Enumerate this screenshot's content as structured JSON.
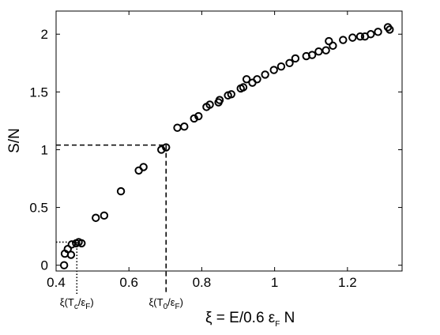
{
  "chart_data": {
    "type": "scatter",
    "title": "",
    "ylabel": "S/N",
    "xlabel": {
      "main": "ξ = E/0.6 ε",
      "sub": "F",
      "tail": " N"
    },
    "xlim": [
      0.4,
      1.35
    ],
    "ylim": [
      -0.05,
      2.2
    ],
    "xticks": [
      0.4,
      0.6,
      0.8,
      1,
      1.2
    ],
    "xtick_labels": [
      "0.4",
      "0.6",
      "0.8",
      "1",
      "1.2"
    ],
    "yticks": [
      0,
      0.5,
      1,
      1.5,
      2
    ],
    "ytick_labels": [
      "0",
      "0.5",
      "1",
      "1.5",
      "2"
    ],
    "grid": false,
    "marker": "open-circle",
    "points": [
      [
        0.422,
        0.0
      ],
      [
        0.424,
        0.1
      ],
      [
        0.432,
        0.14
      ],
      [
        0.441,
        0.09
      ],
      [
        0.443,
        0.18
      ],
      [
        0.455,
        0.19
      ],
      [
        0.462,
        0.2
      ],
      [
        0.47,
        0.19
      ],
      [
        0.509,
        0.41
      ],
      [
        0.532,
        0.43
      ],
      [
        0.578,
        0.64
      ],
      [
        0.627,
        0.82
      ],
      [
        0.64,
        0.85
      ],
      [
        0.689,
        1.0
      ],
      [
        0.702,
        1.02
      ],
      [
        0.733,
        1.19
      ],
      [
        0.752,
        1.2
      ],
      [
        0.779,
        1.27
      ],
      [
        0.791,
        1.29
      ],
      [
        0.813,
        1.37
      ],
      [
        0.822,
        1.39
      ],
      [
        0.846,
        1.41
      ],
      [
        0.849,
        1.43
      ],
      [
        0.872,
        1.47
      ],
      [
        0.881,
        1.48
      ],
      [
        0.907,
        1.53
      ],
      [
        0.914,
        1.54
      ],
      [
        0.923,
        1.61
      ],
      [
        0.939,
        1.58
      ],
      [
        0.952,
        1.61
      ],
      [
        0.974,
        1.65
      ],
      [
        0.998,
        1.69
      ],
      [
        1.018,
        1.72
      ],
      [
        1.041,
        1.75
      ],
      [
        1.057,
        1.79
      ],
      [
        1.087,
        1.81
      ],
      [
        1.103,
        1.82
      ],
      [
        1.121,
        1.85
      ],
      [
        1.141,
        1.86
      ],
      [
        1.149,
        1.94
      ],
      [
        1.16,
        1.9
      ],
      [
        1.188,
        1.95
      ],
      [
        1.214,
        1.97
      ],
      [
        1.235,
        1.98
      ],
      [
        1.248,
        1.98
      ],
      [
        1.264,
        2.0
      ],
      [
        1.284,
        2.02
      ],
      [
        1.311,
        2.06
      ],
      [
        1.316,
        2.04
      ]
    ],
    "reference_lines": [
      {
        "style": "dashed",
        "x": 0.702,
        "y": 1.04
      },
      {
        "style": "dotted",
        "x": 0.457,
        "y": 0.2
      }
    ],
    "annotations": [
      {
        "text": "ξ(T",
        "sub": "c",
        "tail": "/ε",
        "sub2": "F",
        "end": ")",
        "x": 0.457
      },
      {
        "text": "ξ(T",
        "sub": "0",
        "tail": "/ε",
        "sub2": "F",
        "end": ")",
        "x": 0.702
      }
    ]
  }
}
